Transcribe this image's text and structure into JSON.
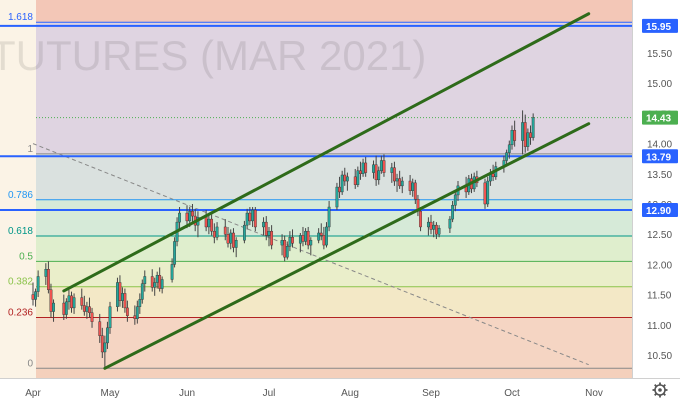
{
  "colors": {
    "up": "#26a69a",
    "down": "#ef5350",
    "wick": "#444444",
    "level_line": "#2962ff",
    "channel": "#2e6b1a",
    "zone_top": "#e8d8e6",
    "zone_mid": "#d4d2e6",
    "last_price": "#4caf50"
  },
  "watermark": "TUTURES (MAR 2021)",
  "chart_data": {
    "type": "candlestick",
    "x_labels": [
      "Apr",
      "May",
      "Jun",
      "Jul",
      "Aug",
      "Sep",
      "Oct",
      "Nov"
    ],
    "y_ticks": [
      10.5,
      11.0,
      11.5,
      12.0,
      12.5,
      13.0,
      13.5,
      14.0,
      14.5,
      15.0,
      15.5
    ],
    "ylim": [
      10.3,
      16.2
    ],
    "fib_levels": [
      {
        "label": "0",
        "price": 10.28,
        "color": "#888888"
      },
      {
        "label": "0.236",
        "price": 11.12,
        "color": "#b22222"
      },
      {
        "label": "0.382",
        "price": 11.63,
        "color": "#8bc34a"
      },
      {
        "label": "0.5",
        "price": 12.05,
        "color": "#4caf50"
      },
      {
        "label": "0.618",
        "price": 12.47,
        "color": "#009688"
      },
      {
        "label": "0.786",
        "price": 13.07,
        "color": "#2196f3"
      },
      {
        "label": "1",
        "price": 13.83,
        "color": "#888888"
      },
      {
        "label": "1.618",
        "price": 16.01,
        "color": "#2962ff"
      }
    ],
    "price_labels": [
      {
        "text": "15.95",
        "price": 15.95,
        "kind": "level"
      },
      {
        "text": "14.43",
        "price": 14.43,
        "kind": "last"
      },
      {
        "text": "13.79",
        "price": 13.79,
        "kind": "level"
      },
      {
        "text": "12.90",
        "price": 12.9,
        "kind": "level"
      }
    ],
    "horizontal_lines": [
      15.95,
      13.79,
      12.9
    ],
    "last_price": 14.43,
    "channel": {
      "upper": {
        "start": [
          "Apr 13",
          11.56
        ],
        "end": [
          "Oct 30",
          16.15
        ]
      },
      "lower": {
        "start": [
          "Apr 29",
          10.28
        ],
        "end": [
          "Oct 30",
          14.33
        ]
      }
    },
    "diagonal": {
      "start": [
        "Apr 1",
        14.0
      ],
      "end": [
        "Oct 30",
        10.34
      ]
    },
    "candles": [
      {
        "date": "Apr 1",
        "o": 11.5,
        "h": 11.7,
        "l": 11.32,
        "c": 11.42
      },
      {
        "date": "Apr 2",
        "o": 11.42,
        "h": 11.6,
        "l": 11.3,
        "c": 11.55
      },
      {
        "date": "Apr 3",
        "o": 11.55,
        "h": 11.9,
        "l": 11.46,
        "c": 11.8
      },
      {
        "date": "Apr 6",
        "o": 11.8,
        "h": 12.02,
        "l": 11.66,
        "c": 11.92
      },
      {
        "date": "Apr 7",
        "o": 11.92,
        "h": 12.05,
        "l": 11.52,
        "c": 11.58
      },
      {
        "date": "Apr 8",
        "o": 11.58,
        "h": 11.68,
        "l": 11.12,
        "c": 11.22
      },
      {
        "date": "Apr 9",
        "o": 11.22,
        "h": 11.42,
        "l": 11.05,
        "c": 11.36
      },
      {
        "date": "Apr 13",
        "o": 11.36,
        "h": 11.5,
        "l": 11.08,
        "c": 11.17
      },
      {
        "date": "Apr 14",
        "o": 11.17,
        "h": 11.44,
        "l": 11.1,
        "c": 11.38
      },
      {
        "date": "Apr 15",
        "o": 11.38,
        "h": 11.58,
        "l": 11.25,
        "c": 11.48
      },
      {
        "date": "Apr 16",
        "o": 11.48,
        "h": 11.55,
        "l": 11.2,
        "c": 11.28
      },
      {
        "date": "Apr 17",
        "o": 11.28,
        "h": 11.52,
        "l": 11.18,
        "c": 11.45
      },
      {
        "date": "Apr 20",
        "o": 11.45,
        "h": 11.6,
        "l": 11.25,
        "c": 11.32
      },
      {
        "date": "Apr 21",
        "o": 11.32,
        "h": 11.48,
        "l": 11.15,
        "c": 11.22
      },
      {
        "date": "Apr 22",
        "o": 11.22,
        "h": 11.38,
        "l": 11.1,
        "c": 11.3
      },
      {
        "date": "Apr 23",
        "o": 11.3,
        "h": 11.45,
        "l": 11.12,
        "c": 11.2
      },
      {
        "date": "Apr 24",
        "o": 11.2,
        "h": 11.28,
        "l": 10.95,
        "c": 11.05
      },
      {
        "date": "Apr 27",
        "o": 11.05,
        "h": 11.18,
        "l": 10.7,
        "c": 10.82
      },
      {
        "date": "Apr 28",
        "o": 10.82,
        "h": 10.95,
        "l": 10.45,
        "c": 10.55
      },
      {
        "date": "Apr 29",
        "o": 10.55,
        "h": 10.82,
        "l": 10.3,
        "c": 10.7
      },
      {
        "date": "Apr 30",
        "o": 10.7,
        "h": 11.05,
        "l": 10.6,
        "c": 10.95
      },
      {
        "date": "May 1",
        "o": 10.95,
        "h": 11.38,
        "l": 10.85,
        "c": 11.3
      },
      {
        "date": "May 4",
        "o": 11.3,
        "h": 11.78,
        "l": 11.22,
        "c": 11.7
      },
      {
        "date": "May 5",
        "o": 11.7,
        "h": 11.82,
        "l": 11.3,
        "c": 11.4
      },
      {
        "date": "May 6",
        "o": 11.4,
        "h": 11.62,
        "l": 11.28,
        "c": 11.52
      },
      {
        "date": "May 7",
        "o": 11.52,
        "h": 11.6,
        "l": 11.2,
        "c": 11.28
      },
      {
        "date": "May 8",
        "o": 11.28,
        "h": 11.4,
        "l": 11.05,
        "c": 11.15
      },
      {
        "date": "May 11",
        "o": 11.15,
        "h": 11.32,
        "l": 11.0,
        "c": 11.1
      },
      {
        "date": "May 12",
        "o": 11.1,
        "h": 11.4,
        "l": 11.02,
        "c": 11.3
      },
      {
        "date": "May 13",
        "o": 11.3,
        "h": 11.52,
        "l": 11.18,
        "c": 11.42
      },
      {
        "date": "May 14",
        "o": 11.42,
        "h": 11.75,
        "l": 11.35,
        "c": 11.68
      },
      {
        "date": "May 15",
        "o": 11.68,
        "h": 11.9,
        "l": 11.55,
        "c": 11.8
      },
      {
        "date": "May 18",
        "o": 11.8,
        "h": 11.92,
        "l": 11.55,
        "c": 11.62
      },
      {
        "date": "May 19",
        "o": 11.62,
        "h": 11.78,
        "l": 11.48,
        "c": 11.7
      },
      {
        "date": "May 20",
        "o": 11.7,
        "h": 11.88,
        "l": 11.6,
        "c": 11.82
      },
      {
        "date": "May 21",
        "o": 11.82,
        "h": 11.95,
        "l": 11.55,
        "c": 11.6
      },
      {
        "date": "May 22",
        "o": 11.6,
        "h": 11.8,
        "l": 11.52,
        "c": 11.75
      },
      {
        "date": "May 26",
        "o": 11.75,
        "h": 12.1,
        "l": 11.7,
        "c": 12.0
      },
      {
        "date": "May 27",
        "o": 12.0,
        "h": 12.45,
        "l": 11.95,
        "c": 12.38
      },
      {
        "date": "May 28",
        "o": 12.38,
        "h": 12.78,
        "l": 12.3,
        "c": 12.7
      },
      {
        "date": "May 29",
        "o": 12.7,
        "h": 12.95,
        "l": 12.58,
        "c": 12.85
      },
      {
        "date": "Jun 1",
        "o": 12.85,
        "h": 12.98,
        "l": 12.6,
        "c": 12.72
      },
      {
        "date": "Jun 2",
        "o": 12.72,
        "h": 12.95,
        "l": 12.62,
        "c": 12.88
      },
      {
        "date": "Jun 3",
        "o": 12.88,
        "h": 13.0,
        "l": 12.7,
        "c": 12.8
      },
      {
        "date": "Jun 4",
        "o": 12.8,
        "h": 12.92,
        "l": 12.55,
        "c": 12.65
      },
      {
        "date": "Jun 5",
        "o": 12.65,
        "h": 12.88,
        "l": 12.45,
        "c": 12.78
      },
      {
        "date": "Jun 8",
        "o": 12.78,
        "h": 12.9,
        "l": 12.55,
        "c": 12.62
      },
      {
        "date": "Jun 9",
        "o": 12.62,
        "h": 12.85,
        "l": 12.5,
        "c": 12.75
      },
      {
        "date": "Jun 10",
        "o": 12.75,
        "h": 12.82,
        "l": 12.48,
        "c": 12.55
      },
      {
        "date": "Jun 11",
        "o": 12.55,
        "h": 12.68,
        "l": 12.35,
        "c": 12.45
      },
      {
        "date": "Jun 12",
        "o": 12.45,
        "h": 12.7,
        "l": 12.4,
        "c": 12.62
      },
      {
        "date": "Jun 15",
        "o": 12.62,
        "h": 12.75,
        "l": 12.4,
        "c": 12.5
      },
      {
        "date": "Jun 16",
        "o": 12.5,
        "h": 12.62,
        "l": 12.28,
        "c": 12.35
      },
      {
        "date": "Jun 17",
        "o": 12.35,
        "h": 12.58,
        "l": 12.25,
        "c": 12.52
      },
      {
        "date": "Jun 18",
        "o": 12.52,
        "h": 12.6,
        "l": 12.2,
        "c": 12.28
      },
      {
        "date": "Jun 19",
        "o": 12.28,
        "h": 12.45,
        "l": 12.12,
        "c": 12.4
      },
      {
        "date": "Jun 22",
        "o": 12.4,
        "h": 12.72,
        "l": 12.35,
        "c": 12.65
      },
      {
        "date": "Jun 23",
        "o": 12.65,
        "h": 12.92,
        "l": 12.58,
        "c": 12.85
      },
      {
        "date": "Jun 24",
        "o": 12.85,
        "h": 12.95,
        "l": 12.65,
        "c": 12.72
      },
      {
        "date": "Jun 25",
        "o": 12.72,
        "h": 12.95,
        "l": 12.62,
        "c": 12.9
      },
      {
        "date": "Jun 26",
        "o": 12.9,
        "h": 12.95,
        "l": 12.55,
        "c": 12.62
      },
      {
        "date": "Jun 29",
        "o": 12.62,
        "h": 12.78,
        "l": 12.48,
        "c": 12.7
      },
      {
        "date": "Jun 30",
        "o": 12.7,
        "h": 12.8,
        "l": 12.4,
        "c": 12.48
      },
      {
        "date": "Jul 1",
        "o": 12.48,
        "h": 12.62,
        "l": 12.3,
        "c": 12.55
      },
      {
        "date": "Jul 2",
        "o": 12.55,
        "h": 12.65,
        "l": 12.25,
        "c": 12.32
      },
      {
        "date": "Jul 6",
        "o": 12.32,
        "h": 12.5,
        "l": 12.15,
        "c": 12.4
      },
      {
        "date": "Jul 7",
        "o": 12.4,
        "h": 12.48,
        "l": 12.05,
        "c": 12.12
      },
      {
        "date": "Jul 8",
        "o": 12.12,
        "h": 12.38,
        "l": 12.08,
        "c": 12.3
      },
      {
        "date": "Jul 9",
        "o": 12.3,
        "h": 12.55,
        "l": 12.22,
        "c": 12.45
      },
      {
        "date": "Jul 10",
        "o": 12.45,
        "h": 12.58,
        "l": 12.28,
        "c": 12.35
      },
      {
        "date": "Jul 13",
        "o": 12.35,
        "h": 12.52,
        "l": 12.2,
        "c": 12.48
      },
      {
        "date": "Jul 14",
        "o": 12.48,
        "h": 12.62,
        "l": 12.3,
        "c": 12.38
      },
      {
        "date": "Jul 15",
        "o": 12.38,
        "h": 12.6,
        "l": 12.32,
        "c": 12.55
      },
      {
        "date": "Jul 16",
        "o": 12.55,
        "h": 12.62,
        "l": 12.25,
        "c": 12.32
      },
      {
        "date": "Jul 17",
        "o": 12.32,
        "h": 12.45,
        "l": 12.15,
        "c": 12.4
      },
      {
        "date": "Jul 20",
        "o": 12.4,
        "h": 12.6,
        "l": 12.35,
        "c": 12.52
      },
      {
        "date": "Jul 21",
        "o": 12.52,
        "h": 12.68,
        "l": 12.4,
        "c": 12.48
      },
      {
        "date": "Jul 22",
        "o": 12.48,
        "h": 12.62,
        "l": 12.25,
        "c": 12.32
      },
      {
        "date": "Jul 23",
        "o": 12.32,
        "h": 12.7,
        "l": 12.28,
        "c": 12.62
      },
      {
        "date": "Jul 24",
        "o": 12.62,
        "h": 13.05,
        "l": 12.55,
        "c": 12.95
      },
      {
        "date": "Jul 27",
        "o": 12.95,
        "h": 13.35,
        "l": 12.9,
        "c": 13.28
      },
      {
        "date": "Jul 28",
        "o": 13.28,
        "h": 13.45,
        "l": 13.1,
        "c": 13.2
      },
      {
        "date": "Jul 29",
        "o": 13.2,
        "h": 13.55,
        "l": 13.15,
        "c": 13.48
      },
      {
        "date": "Jul 30",
        "o": 13.48,
        "h": 13.6,
        "l": 13.3,
        "c": 13.38
      },
      {
        "date": "Jul 31",
        "o": 13.38,
        "h": 13.52,
        "l": 13.22,
        "c": 13.45
      },
      {
        "date": "Aug 3",
        "o": 13.45,
        "h": 13.58,
        "l": 13.25,
        "c": 13.32
      },
      {
        "date": "Aug 4",
        "o": 13.32,
        "h": 13.62,
        "l": 13.28,
        "c": 13.55
      },
      {
        "date": "Aug 5",
        "o": 13.55,
        "h": 13.7,
        "l": 13.4,
        "c": 13.5
      },
      {
        "date": "Aug 6",
        "o": 13.5,
        "h": 13.75,
        "l": 13.45,
        "c": 13.68
      },
      {
        "date": "Aug 7",
        "o": 13.68,
        "h": 13.78,
        "l": 13.45,
        "c": 13.52
      },
      {
        "date": "Aug 10",
        "o": 13.52,
        "h": 13.72,
        "l": 13.42,
        "c": 13.65
      },
      {
        "date": "Aug 11",
        "o": 13.65,
        "h": 13.8,
        "l": 13.3,
        "c": 13.4
      },
      {
        "date": "Aug 12",
        "o": 13.4,
        "h": 13.62,
        "l": 13.32,
        "c": 13.55
      },
      {
        "date": "Aug 13",
        "o": 13.55,
        "h": 13.8,
        "l": 13.5,
        "c": 13.72
      },
      {
        "date": "Aug 14",
        "o": 13.72,
        "h": 13.82,
        "l": 13.45,
        "c": 13.52
      },
      {
        "date": "Aug 17",
        "o": 13.52,
        "h": 13.68,
        "l": 13.35,
        "c": 13.6
      },
      {
        "date": "Aug 18",
        "o": 13.6,
        "h": 13.7,
        "l": 13.3,
        "c": 13.38
      },
      {
        "date": "Aug 19",
        "o": 13.38,
        "h": 13.5,
        "l": 13.2,
        "c": 13.42
      },
      {
        "date": "Aug 20",
        "o": 13.42,
        "h": 13.55,
        "l": 13.25,
        "c": 13.3
      },
      {
        "date": "Aug 21",
        "o": 13.3,
        "h": 13.45,
        "l": 13.18,
        "c": 13.38
      },
      {
        "date": "Aug 24",
        "o": 13.38,
        "h": 13.48,
        "l": 13.15,
        "c": 13.22
      },
      {
        "date": "Aug 25",
        "o": 13.22,
        "h": 13.42,
        "l": 13.12,
        "c": 13.35
      },
      {
        "date": "Aug 26",
        "o": 13.35,
        "h": 13.4,
        "l": 13.0,
        "c": 13.08
      },
      {
        "date": "Aug 27",
        "o": 13.08,
        "h": 13.15,
        "l": 12.8,
        "c": 12.88
      },
      {
        "date": "Aug 28",
        "o": 12.88,
        "h": 12.95,
        "l": 12.55,
        "c": 12.62
      },
      {
        "date": "Aug 31",
        "o": 12.62,
        "h": 12.78,
        "l": 12.48,
        "c": 12.7
      },
      {
        "date": "Sep 1",
        "o": 12.7,
        "h": 12.82,
        "l": 12.5,
        "c": 12.58
      },
      {
        "date": "Sep 2",
        "o": 12.58,
        "h": 12.72,
        "l": 12.45,
        "c": 12.65
      },
      {
        "date": "Sep 3",
        "o": 12.65,
        "h": 12.7,
        "l": 12.42,
        "c": 12.5
      },
      {
        "date": "Sep 4",
        "o": 12.5,
        "h": 12.65,
        "l": 12.45,
        "c": 12.6
      },
      {
        "date": "Sep 8",
        "o": 12.6,
        "h": 12.8,
        "l": 12.52,
        "c": 12.75
      },
      {
        "date": "Sep 9",
        "o": 12.75,
        "h": 13.05,
        "l": 12.7,
        "c": 12.98
      },
      {
        "date": "Sep 10",
        "o": 12.98,
        "h": 13.2,
        "l": 12.88,
        "c": 13.15
      },
      {
        "date": "Sep 11",
        "o": 13.15,
        "h": 13.38,
        "l": 13.05,
        "c": 13.3
      },
      {
        "date": "Sep 14",
        "o": 13.3,
        "h": 13.45,
        "l": 13.1,
        "c": 13.2
      },
      {
        "date": "Sep 15",
        "o": 13.2,
        "h": 13.48,
        "l": 13.15,
        "c": 13.42
      },
      {
        "date": "Sep 16",
        "o": 13.42,
        "h": 13.5,
        "l": 13.18,
        "c": 13.25
      },
      {
        "date": "Sep 17",
        "o": 13.25,
        "h": 13.52,
        "l": 13.2,
        "c": 13.45
      },
      {
        "date": "Sep 18",
        "o": 13.45,
        "h": 13.55,
        "l": 13.28,
        "c": 13.35
      },
      {
        "date": "Sep 21",
        "o": 13.35,
        "h": 13.42,
        "l": 12.92,
        "c": 13.0
      },
      {
        "date": "Sep 22",
        "o": 13.0,
        "h": 13.45,
        "l": 12.95,
        "c": 13.38
      },
      {
        "date": "Sep 23",
        "o": 13.38,
        "h": 13.58,
        "l": 13.3,
        "c": 13.5
      },
      {
        "date": "Sep 24",
        "o": 13.5,
        "h": 13.65,
        "l": 13.38,
        "c": 13.45
      },
      {
        "date": "Sep 25",
        "o": 13.45,
        "h": 13.7,
        "l": 13.4,
        "c": 13.62
      },
      {
        "date": "Sep 28",
        "o": 13.62,
        "h": 13.8,
        "l": 13.52,
        "c": 13.72
      },
      {
        "date": "Sep 29",
        "o": 13.72,
        "h": 13.9,
        "l": 13.65,
        "c": 13.85
      },
      {
        "date": "Sep 30",
        "o": 13.85,
        "h": 14.05,
        "l": 13.75,
        "c": 13.98
      },
      {
        "date": "Oct 1",
        "o": 13.98,
        "h": 14.3,
        "l": 13.9,
        "c": 14.22
      },
      {
        "date": "Oct 2",
        "o": 14.22,
        "h": 14.38,
        "l": 13.95,
        "c": 14.05
      },
      {
        "date": "Oct 5",
        "o": 14.05,
        "h": 14.55,
        "l": 13.82,
        "c": 14.35
      },
      {
        "date": "Oct 6",
        "o": 14.35,
        "h": 14.48,
        "l": 13.85,
        "c": 13.95
      },
      {
        "date": "Oct 7",
        "o": 13.95,
        "h": 14.25,
        "l": 13.88,
        "c": 14.18
      },
      {
        "date": "Oct 8",
        "o": 14.18,
        "h": 14.3,
        "l": 13.98,
        "c": 14.1
      },
      {
        "date": "Oct 9",
        "o": 14.1,
        "h": 14.5,
        "l": 14.05,
        "c": 14.43
      }
    ]
  }
}
